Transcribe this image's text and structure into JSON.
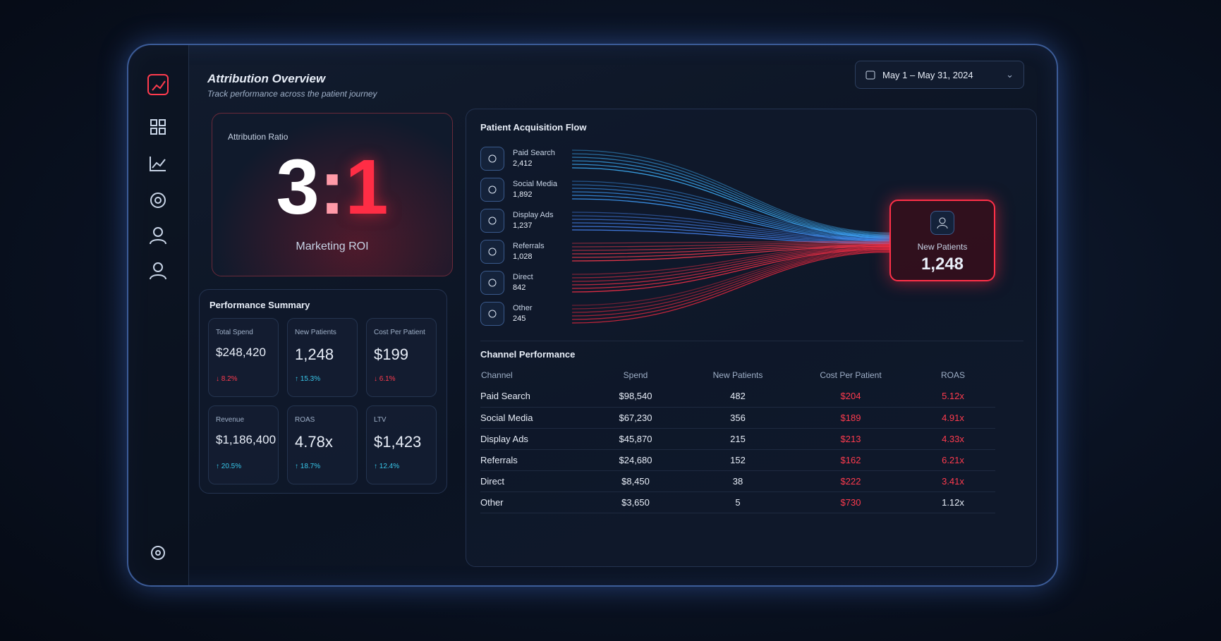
{
  "header": {
    "title": "Attribution Overview",
    "subtitle": "Track performance across the patient journey",
    "date_range": "May 1 – May 31, 2024"
  },
  "attribution": {
    "label": "Attribution Ratio",
    "ratio": [
      "3",
      ":",
      "1"
    ],
    "caption": "Marketing ROI"
  },
  "summary": {
    "title": "Performance Summary",
    "cards": [
      {
        "label": "Total Spend",
        "value": "$248,420",
        "change": "↓ 8.2%",
        "color": "#ff3b4e"
      },
      {
        "label": "New Patients",
        "value": "1,248",
        "change": "↑ 15.3%",
        "color": "#38c6e8"
      },
      {
        "label": "Cost Per Patient",
        "value": "$199",
        "change": "↓ 6.1%",
        "color": "#ff3b4e"
      },
      {
        "label": "Revenue",
        "value": "$1,186,400",
        "change": "↑ 20.5%",
        "color": "#38c6e8"
      },
      {
        "label": "ROAS",
        "value": "4.78x",
        "change": "↑ 18.7%",
        "color": "#38c6e8"
      },
      {
        "label": "LTV",
        "value": "$1,423",
        "change": "↑ 12.4%",
        "color": "#38c6e8"
      }
    ]
  },
  "flow": {
    "title": "Patient Acquisition Flow",
    "sources": [
      {
        "label": "Paid Search",
        "value": "2,412",
        "color": "#3fb4ff"
      },
      {
        "label": "Social Media",
        "value": "1,892",
        "color": "#3fa0ff"
      },
      {
        "label": "Display Ads",
        "value": "1,237",
        "color": "#4a8cff"
      },
      {
        "label": "Referrals",
        "value": "1,028",
        "color": "#ff3b4e"
      },
      {
        "label": "Direct",
        "value": "842",
        "color": "#ff3048"
      },
      {
        "label": "Other",
        "value": "245",
        "color": "#e0283e"
      }
    ],
    "target": {
      "label": "New Patients",
      "value": "1,248"
    }
  },
  "table": {
    "title": "Channel Performance",
    "columns": [
      "Channel",
      "Spend",
      "New Patients",
      "Cost Per Patient",
      "ROAS"
    ],
    "rows": [
      [
        "Paid Search",
        "$98,540",
        "482",
        "$204",
        "5.12x"
      ],
      [
        "Social Media",
        "$67,230",
        "356",
        "$189",
        "4.91x"
      ],
      [
        "Display Ads",
        "$45,870",
        "215",
        "$213",
        "4.33x"
      ],
      [
        "Referrals",
        "$24,680",
        "152",
        "$162",
        "6.21x"
      ],
      [
        "Direct",
        "$8,450",
        "38",
        "$222",
        "3.41x"
      ],
      [
        "Other",
        "$3,650",
        "5",
        "$730",
        "1.12x"
      ]
    ]
  }
}
